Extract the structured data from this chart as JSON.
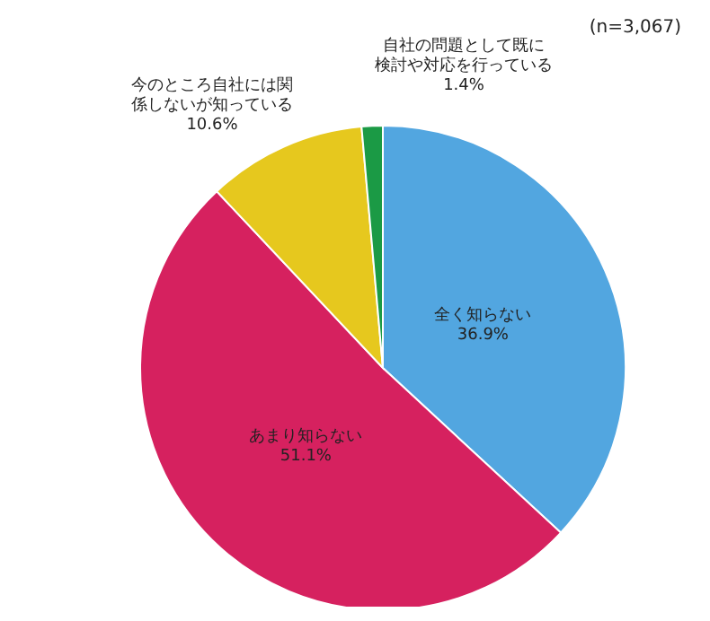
{
  "chart_data": {
    "type": "pie",
    "categories": [
      "全く知らない",
      "あまり知らない",
      "今のところ自社には関係しないが知っている",
      "自社の問題として既に検討や対応を行っている"
    ],
    "values": [
      36.9,
      51.1,
      10.6,
      1.4
    ],
    "colors": [
      "#52a6e0",
      "#d6215f",
      "#e6c81e",
      "#1b9a45"
    ],
    "annotations": [
      "(n=3,067)"
    ],
    "value_labels": [
      "36.9%",
      "51.1%",
      "10.6%",
      "1.4%"
    ],
    "legend": false
  }
}
